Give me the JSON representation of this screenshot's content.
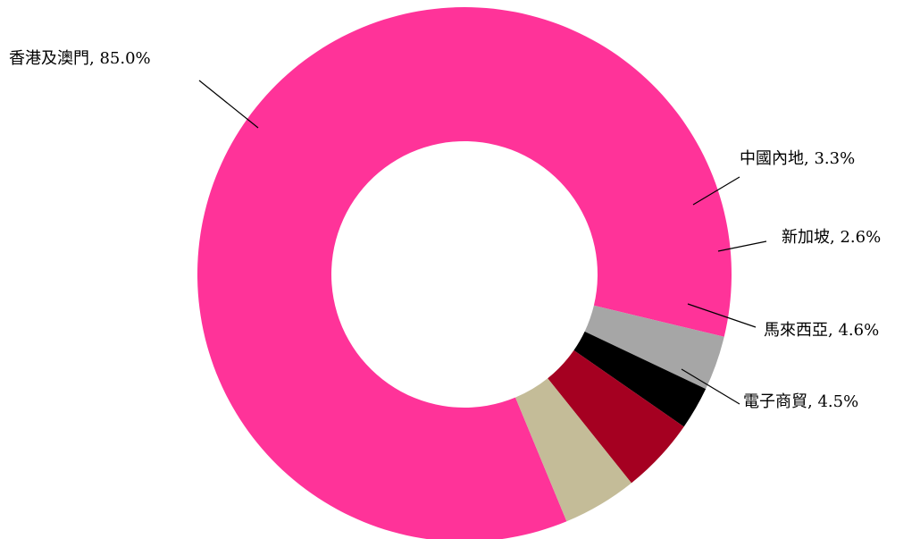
{
  "chart_data": {
    "type": "pie",
    "variant": "donut",
    "title": "",
    "legend": "none",
    "slices": [
      {
        "name": "香港及澳門",
        "value": 85.0,
        "label": "香港及澳門, 85.0%",
        "color": "#FF3399"
      },
      {
        "name": "中國內地",
        "value": 3.3,
        "label": "中國內地, 3.3%",
        "color": "#A6A6A6"
      },
      {
        "name": "新加坡",
        "value": 2.6,
        "label": "新加坡, 2.6%",
        "color": "#000000"
      },
      {
        "name": "馬來西亞",
        "value": 4.6,
        "label": "馬來西亞, 4.6%",
        "color": "#A50021"
      },
      {
        "name": "電子商貿",
        "value": 4.5,
        "label": "電子商貿, 4.5%",
        "color": "#C4BC98"
      }
    ]
  }
}
